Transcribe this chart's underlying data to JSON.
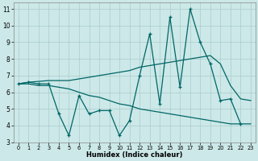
{
  "xlabel": "Humidex (Indice chaleur)",
  "ylabel": "",
  "bg_color": "#cce8e8",
  "grid_color": "#aacccc",
  "line_color": "#006666",
  "xlim": [
    -0.5,
    23.5
  ],
  "ylim": [
    3,
    11.4
  ],
  "yticks": [
    3,
    4,
    5,
    6,
    7,
    8,
    9,
    10,
    11
  ],
  "xticks": [
    0,
    1,
    2,
    3,
    4,
    5,
    6,
    7,
    8,
    9,
    10,
    11,
    12,
    13,
    14,
    15,
    16,
    17,
    18,
    19,
    20,
    21,
    22,
    23
  ],
  "line1_x": [
    0,
    1,
    2,
    3,
    4,
    5,
    6,
    7,
    8,
    9,
    10,
    11,
    12,
    13,
    14,
    15,
    16,
    17,
    18,
    19,
    20,
    21,
    22,
    23
  ],
  "line1_y": [
    6.5,
    6.6,
    6.65,
    6.7,
    6.7,
    6.7,
    6.8,
    6.9,
    7.0,
    7.1,
    7.2,
    7.3,
    7.5,
    7.6,
    7.7,
    7.8,
    7.9,
    8.0,
    8.1,
    8.2,
    7.7,
    6.4,
    5.6,
    5.5
  ],
  "line2_x": [
    0,
    1,
    2,
    3,
    4,
    5,
    6,
    7,
    8,
    9,
    10,
    11,
    12,
    13,
    14,
    15,
    16,
    17,
    18,
    19,
    20,
    21,
    22
  ],
  "line2_y": [
    6.5,
    6.6,
    6.5,
    6.5,
    4.7,
    3.4,
    5.8,
    4.7,
    4.9,
    4.9,
    3.4,
    4.3,
    7.0,
    9.5,
    5.3,
    10.5,
    6.3,
    11.0,
    9.0,
    7.7,
    5.5,
    5.6,
    4.1
  ],
  "line3_x": [
    0,
    1,
    2,
    3,
    4,
    5,
    6,
    7,
    8,
    9,
    10,
    11,
    12,
    13,
    14,
    15,
    16,
    17,
    18,
    19,
    20,
    21,
    22,
    23
  ],
  "line3_y": [
    6.5,
    6.5,
    6.4,
    6.4,
    6.3,
    6.2,
    6.0,
    5.8,
    5.7,
    5.5,
    5.3,
    5.2,
    5.0,
    4.9,
    4.8,
    4.7,
    4.6,
    4.5,
    4.4,
    4.3,
    4.2,
    4.1,
    4.1,
    4.1
  ]
}
